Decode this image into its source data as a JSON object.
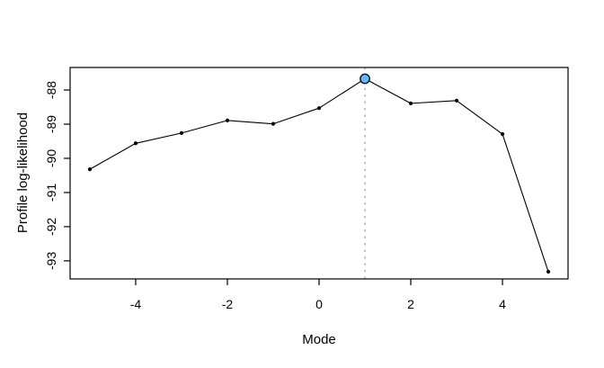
{
  "figure": {
    "background": "#ffffff",
    "frame_color": "#000000"
  },
  "chart_data": {
    "type": "line",
    "title": "",
    "xlabel": "Mode",
    "ylabel": "Profile log-likelihood",
    "x": [
      -5,
      -4,
      -3,
      -2,
      -1,
      0,
      1,
      2,
      3,
      4,
      5
    ],
    "y": [
      -90.32,
      -89.56,
      -89.26,
      -88.89,
      -88.99,
      -88.53,
      -87.67,
      -88.39,
      -88.31,
      -89.29,
      -93.32
    ],
    "xticks": [
      -4,
      -2,
      0,
      2,
      4
    ],
    "yticks": [
      -88,
      -89,
      -90,
      -91,
      -92,
      -93
    ],
    "xlim": [
      -5.43,
      5.43
    ],
    "ylim": [
      -93.53,
      -87.34
    ],
    "grid": false,
    "legend": null,
    "line_color": "#000000",
    "point_color": "#000000",
    "peak_marker": {
      "x": 1,
      "y": -87.67,
      "fill": "#63b8ff",
      "stroke": "#12121f"
    },
    "vline": {
      "x": 1,
      "style": "dotted",
      "color": "#c4c4c4"
    }
  }
}
